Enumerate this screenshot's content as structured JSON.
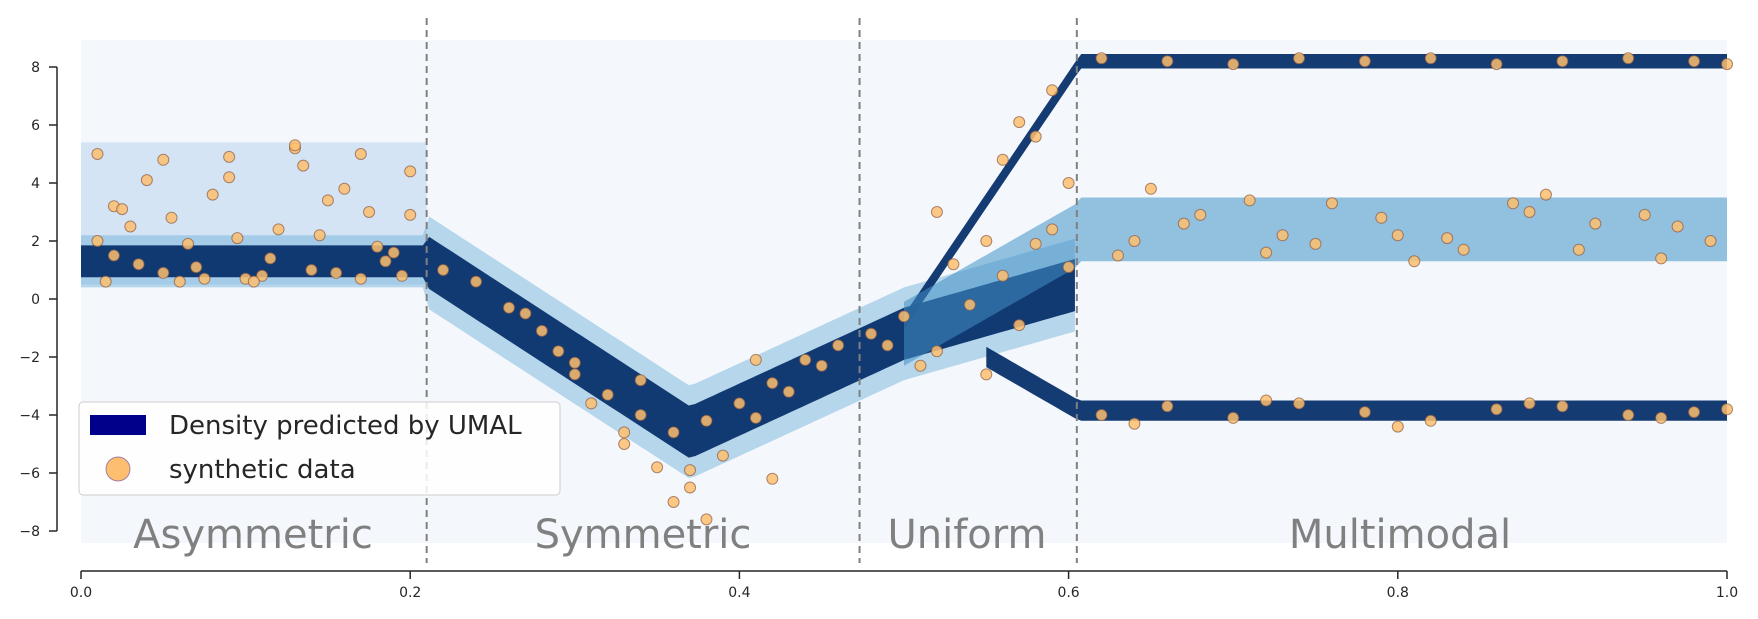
{
  "chart_data": {
    "type": "scatter",
    "title": "",
    "xlabel": "",
    "ylabel": "",
    "xlim": [
      0.0,
      1.0
    ],
    "ylim": [
      -8.5,
      8.8
    ],
    "xticks": [
      0.0,
      0.2,
      0.4,
      0.6,
      0.8,
      1.0
    ],
    "xtick_labels": [
      "0.0",
      "0.2",
      "0.4",
      "0.6",
      "0.8",
      "1.0"
    ],
    "yticks": [
      8,
      6,
      4,
      2,
      0,
      -2,
      -4,
      -6,
      -8
    ],
    "ytick_labels": [
      "8",
      "6",
      "4",
      "2",
      "0",
      "−2",
      "−4",
      "−6",
      "−8"
    ],
    "grid": false,
    "legend": {
      "placement": "lower-left",
      "entries": [
        {
          "label": "Density predicted by UMAL",
          "kind": "patch",
          "color": "#00008b"
        },
        {
          "label": "synthetic data",
          "kind": "marker",
          "color": "#fdbf6f"
        }
      ]
    },
    "regions": [
      {
        "label": "Asymmetric",
        "x_start": 0.0,
        "x_end": 0.21
      },
      {
        "label": "Symmetric",
        "x_start": 0.21,
        "x_end": 0.473
      },
      {
        "label": "Uniform",
        "x_start": 0.473,
        "x_end": 0.605
      },
      {
        "label": "Multimodal",
        "x_start": 0.605,
        "x_end": 1.0
      }
    ],
    "dividers_x": [
      0.21,
      0.473,
      0.605
    ],
    "series": [
      {
        "name": "synthetic data",
        "kind": "scatter",
        "x": [
          0.01,
          0.02,
          0.03,
          0.05,
          0.07,
          0.09,
          0.11,
          0.13,
          0.15,
          0.17,
          0.19,
          0.2,
          0.015,
          0.035,
          0.055,
          0.075,
          0.095,
          0.115,
          0.135,
          0.155,
          0.175,
          0.195,
          0.01,
          0.04,
          0.06,
          0.08,
          0.1,
          0.12,
          0.14,
          0.16,
          0.18,
          0.2,
          0.02,
          0.05,
          0.09,
          0.13,
          0.17,
          0.025,
          0.065,
          0.105,
          0.145,
          0.185,
          0.22,
          0.24,
          0.26,
          0.28,
          0.3,
          0.32,
          0.34,
          0.36,
          0.38,
          0.4,
          0.42,
          0.44,
          0.46,
          0.27,
          0.29,
          0.31,
          0.33,
          0.35,
          0.37,
          0.39,
          0.41,
          0.43,
          0.45,
          0.3,
          0.34,
          0.36,
          0.38,
          0.42,
          0.33,
          0.37,
          0.41,
          0.48,
          0.5,
          0.52,
          0.54,
          0.56,
          0.58,
          0.6,
          0.49,
          0.51,
          0.53,
          0.55,
          0.57,
          0.59,
          0.56,
          0.58,
          0.6,
          0.57,
          0.59,
          0.52,
          0.55,
          0.62,
          0.66,
          0.7,
          0.74,
          0.78,
          0.82,
          0.86,
          0.9,
          0.94,
          0.98,
          1.0,
          0.64,
          0.68,
          0.72,
          0.76,
          0.8,
          0.84,
          0.88,
          0.92,
          0.96,
          0.63,
          0.67,
          0.71,
          0.75,
          0.79,
          0.83,
          0.87,
          0.91,
          0.95,
          0.99,
          0.65,
          0.73,
          0.81,
          0.89,
          0.97,
          0.62,
          0.66,
          0.7,
          0.74,
          0.78,
          0.82,
          0.86,
          0.9,
          0.94,
          0.98,
          1.0,
          0.64,
          0.72,
          0.8,
          0.88,
          0.96
        ],
        "y": [
          5.0,
          3.2,
          2.5,
          4.8,
          1.1,
          4.9,
          0.8,
          5.2,
          3.4,
          5.0,
          1.6,
          4.4,
          0.6,
          1.2,
          2.8,
          0.7,
          2.1,
          1.4,
          4.6,
          0.9,
          3.0,
          0.8,
          2.0,
          4.1,
          0.6,
          3.6,
          0.7,
          2.4,
          1.0,
          3.8,
          1.8,
          2.9,
          1.5,
          0.9,
          4.2,
          5.3,
          0.7,
          3.1,
          1.9,
          0.6,
          2.2,
          1.3,
          1.0,
          0.6,
          -0.3,
          -1.1,
          -2.2,
          -3.3,
          -4.0,
          -4.6,
          -4.2,
          -3.6,
          -2.9,
          -2.1,
          -1.6,
          -0.5,
          -1.8,
          -3.6,
          -5.0,
          -5.8,
          -6.5,
          -5.4,
          -4.1,
          -3.2,
          -2.3,
          -2.6,
          -2.8,
          -7.0,
          -7.6,
          -6.2,
          -4.6,
          -5.9,
          -2.1,
          -1.2,
          -0.6,
          -1.8,
          -0.2,
          0.8,
          1.9,
          1.1,
          -1.6,
          -2.3,
          1.2,
          -2.6,
          -0.9,
          2.4,
          4.8,
          5.6,
          4.0,
          6.1,
          7.2,
          3.0,
          2.0,
          8.3,
          8.2,
          8.1,
          8.3,
          8.2,
          8.3,
          8.1,
          8.2,
          8.3,
          8.2,
          8.1,
          2.0,
          2.9,
          1.6,
          3.3,
          2.2,
          1.7,
          3.0,
          2.6,
          1.4,
          1.5,
          2.6,
          3.4,
          1.9,
          2.8,
          2.1,
          3.3,
          1.7,
          2.9,
          2.0,
          3.8,
          2.2,
          1.3,
          3.6,
          2.5,
          -4.0,
          -3.7,
          -4.1,
          -3.6,
          -3.9,
          -4.2,
          -3.8,
          -3.7,
          -4.0,
          -3.9,
          -3.8,
          -4.3,
          -3.5,
          -4.4,
          -3.6,
          -4.1
        ]
      }
    ]
  }
}
